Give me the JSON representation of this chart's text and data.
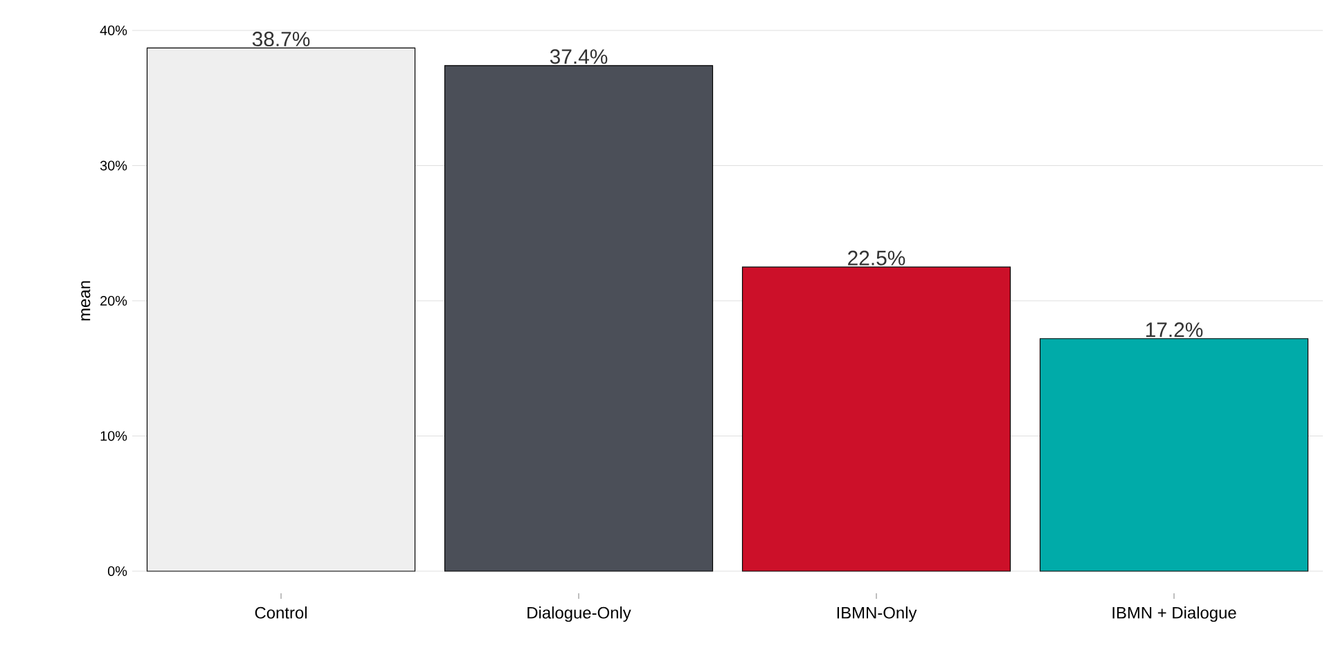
{
  "chart_data": {
    "type": "bar",
    "ylabel": "mean",
    "categories": [
      "Control",
      "Dialogue-Only",
      "IBMN-Only",
      "IBMN + Dialogue"
    ],
    "values": [
      38.7,
      37.4,
      22.5,
      17.2
    ],
    "colors": [
      "#efefef",
      "#4b4f58",
      "#cc1029",
      "#00aba9"
    ],
    "value_labels": [
      "38.7%",
      "37.4%",
      "22.5%",
      "17.2%"
    ],
    "ylim": [
      0,
      40
    ],
    "yticks": [
      {
        "value": 0,
        "label": "0%"
      },
      {
        "value": 10,
        "label": "10%"
      },
      {
        "value": 20,
        "label": "20%"
      },
      {
        "value": 30,
        "label": "30%"
      },
      {
        "value": 40,
        "label": "40%"
      }
    ],
    "grid": "y"
  }
}
